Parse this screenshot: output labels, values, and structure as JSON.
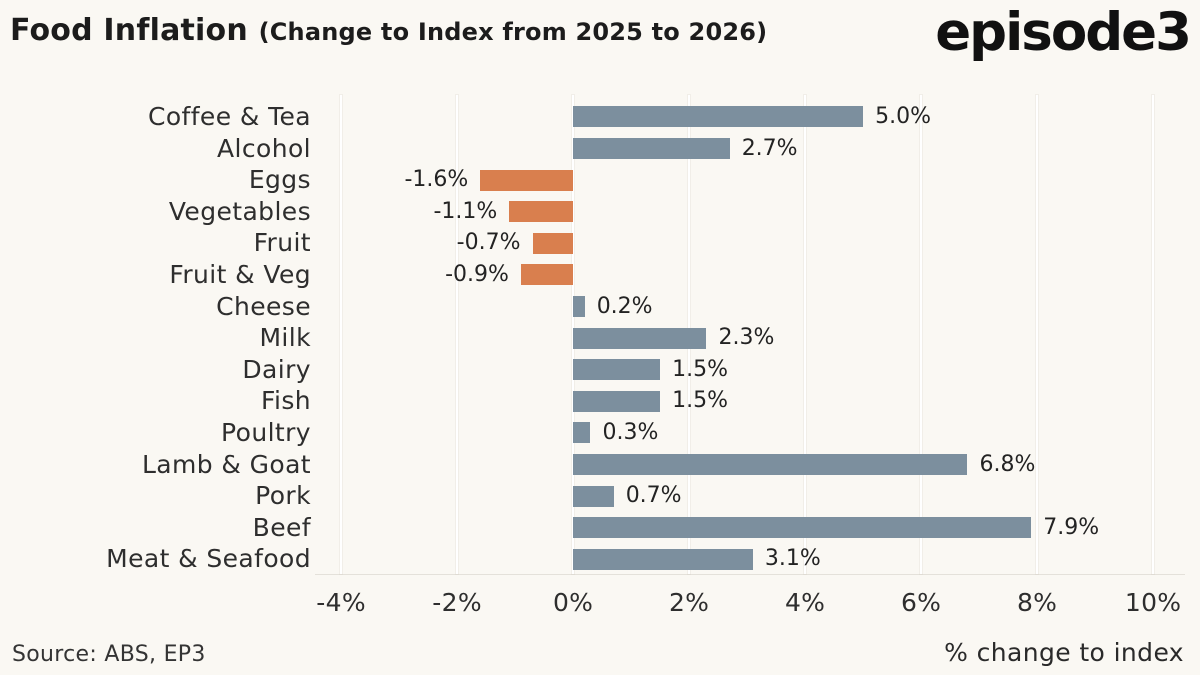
{
  "header": {
    "title_main": "Food Inflation ",
    "title_sub": "(Change to Index from 2025 to 2026)",
    "logo_text": "episode3"
  },
  "footer": {
    "source": "Source: ABS, EP3",
    "xlabel": "% change to index"
  },
  "chart_data": {
    "type": "bar",
    "orientation": "horizontal",
    "title": "Food Inflation (Change to Index from 2025 to 2026)",
    "xlabel": "% change to index",
    "categories": [
      "Coffee & Tea",
      "Alcohol",
      "Eggs",
      "Vegetables",
      "Fruit",
      "Fruit & Veg",
      "Cheese",
      "Milk",
      "Dairy",
      "Fish",
      "Poultry",
      "Lamb & Goat",
      "Pork",
      "Beef",
      "Meat & Seafood"
    ],
    "values": [
      5.0,
      2.7,
      -1.6,
      -1.1,
      -0.7,
      -0.9,
      0.2,
      2.3,
      1.5,
      1.5,
      0.3,
      6.8,
      0.7,
      7.9,
      3.1
    ],
    "value_labels": [
      "5.0%",
      "2.7%",
      "-1.6%",
      "-1.1%",
      "-0.7%",
      "-0.9%",
      "0.2%",
      "2.3%",
      "1.5%",
      "1.5%",
      "0.3%",
      "6.8%",
      "0.7%",
      "7.9%",
      "3.1%"
    ],
    "x_ticks": [
      "-4%",
      "-2%",
      "0%",
      "2%",
      "4%",
      "6%",
      "8%",
      "10%"
    ],
    "x_tick_values": [
      -4,
      -2,
      0,
      2,
      4,
      6,
      8,
      10
    ],
    "xlim": [
      -4.45,
      10.55
    ],
    "grid": "vertical",
    "legend": false,
    "colors": {
      "positive_bar": "#7c8f9e",
      "negative_bar": "#d97f4e",
      "background": "#faf8f3",
      "gridline": "#ffffff",
      "text": "#262626"
    }
  }
}
